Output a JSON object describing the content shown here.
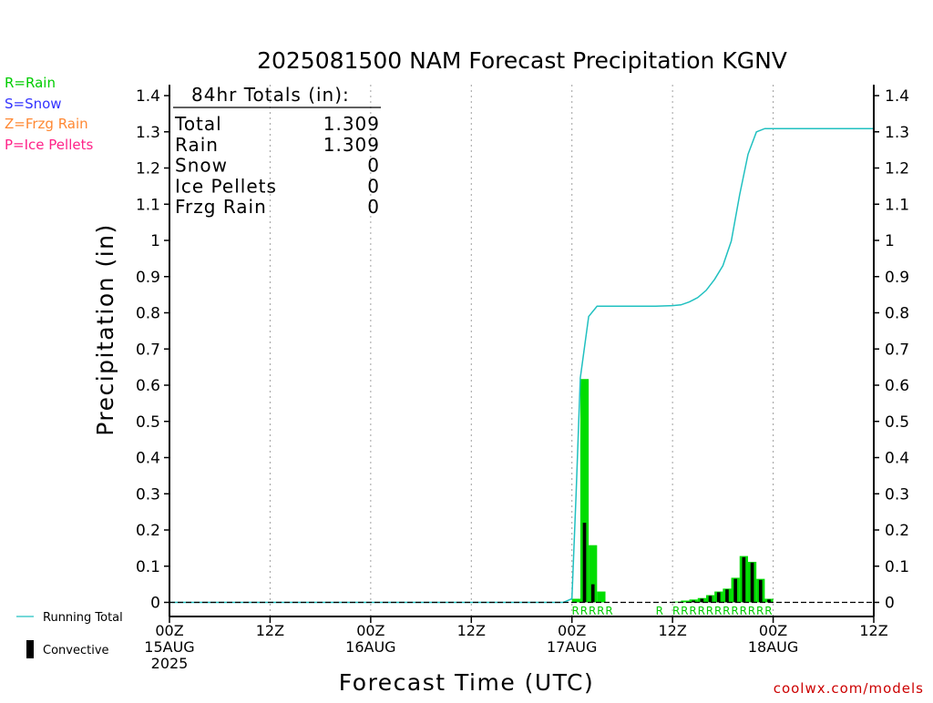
{
  "colors": {
    "axis": "#000000",
    "grid": "#a0a0a0",
    "rain_bar": "#00dd00",
    "convective_bar": "#000000",
    "running_total": "#20c0c0",
    "rain_label": "#00cc00",
    "snow_label": "#3333ff",
    "frzg_label": "#ff8833",
    "ice_label": "#ff2288",
    "footer": "#cc0000"
  },
  "legend": {
    "rain": "R=Rain",
    "snow": "S=Snow",
    "frzg": "Z=Frzg Rain",
    "ice": "P=Ice Pellets",
    "running_total": "Running Total",
    "convective": "Convective"
  },
  "totals": {
    "heading": "84hr Totals (in):",
    "rows": [
      {
        "label": "Total",
        "value": "1.309"
      },
      {
        "label": "Rain",
        "value": "1.309"
      },
      {
        "label": "Snow",
        "value": "0"
      },
      {
        "label": "Ice Pellets",
        "value": "0"
      },
      {
        "label": "Frzg Rain",
        "value": "0"
      }
    ]
  },
  "footer": "coolwx.com/models",
  "chart_data": {
    "type": "bar",
    "title": "2025081500 NAM Forecast Precipitation KGNV",
    "ylabel": "Precipitation (in)",
    "xlabel": "Forecast Time (UTC)",
    "x_unit": "hours since 00Z 15AUG 2025",
    "xlim": [
      0,
      84
    ],
    "ylim": [
      -0.04,
      1.44
    ],
    "yticks": [
      0,
      0.1,
      0.2,
      0.3,
      0.4,
      0.5,
      0.6,
      0.7,
      0.8,
      0.9,
      1,
      1.1,
      1.2,
      1.3,
      1.4
    ],
    "xticks": [
      {
        "x": 0,
        "lines": [
          "00Z",
          "15AUG",
          "2025"
        ]
      },
      {
        "x": 12,
        "lines": [
          "12Z"
        ]
      },
      {
        "x": 24,
        "lines": [
          "00Z",
          "16AUG"
        ]
      },
      {
        "x": 36,
        "lines": [
          "12Z"
        ]
      },
      {
        "x": 48,
        "lines": [
          "00Z",
          "17AUG"
        ]
      },
      {
        "x": 60,
        "lines": [
          "12Z"
        ]
      },
      {
        "x": 72,
        "lines": [
          "00Z",
          "18AUG"
        ]
      },
      {
        "x": 84,
        "lines": [
          "12Z"
        ]
      }
    ],
    "grid": "vertical dotted at each tick",
    "series": [
      {
        "name": "Rain",
        "kind": "bar",
        "bar_width_h": 1,
        "points": [
          {
            "x": 48,
            "y": 0.01
          },
          {
            "x": 49,
            "y": 0.617
          },
          {
            "x": 50,
            "y": 0.158
          },
          {
            "x": 51,
            "y": 0.03
          },
          {
            "x": 60,
            "y": 0.002
          },
          {
            "x": 61,
            "y": 0.005
          },
          {
            "x": 62,
            "y": 0.008
          },
          {
            "x": 63,
            "y": 0.012
          },
          {
            "x": 64,
            "y": 0.02
          },
          {
            "x": 65,
            "y": 0.03
          },
          {
            "x": 66,
            "y": 0.038
          },
          {
            "x": 67,
            "y": 0.068
          },
          {
            "x": 68,
            "y": 0.128
          },
          {
            "x": 69,
            "y": 0.112
          },
          {
            "x": 70,
            "y": 0.065
          },
          {
            "x": 71,
            "y": 0.01
          }
        ]
      },
      {
        "name": "Convective",
        "kind": "bar",
        "bar_width_h": 0.4,
        "points": [
          {
            "x": 49,
            "y": 0.22
          },
          {
            "x": 50,
            "y": 0.05
          },
          {
            "x": 62,
            "y": 0.005
          },
          {
            "x": 63,
            "y": 0.01
          },
          {
            "x": 64,
            "y": 0.018
          },
          {
            "x": 65,
            "y": 0.028
          },
          {
            "x": 66,
            "y": 0.036
          },
          {
            "x": 67,
            "y": 0.065
          },
          {
            "x": 68,
            "y": 0.125
          },
          {
            "x": 69,
            "y": 0.11
          },
          {
            "x": 70,
            "y": 0.062
          },
          {
            "x": 71,
            "y": 0.008
          }
        ]
      },
      {
        "name": "Running Total",
        "kind": "line",
        "points": [
          {
            "x": 0,
            "y": 0
          },
          {
            "x": 47,
            "y": 0
          },
          {
            "x": 48,
            "y": 0.01
          },
          {
            "x": 48.5,
            "y": 0.3
          },
          {
            "x": 49,
            "y": 0.62
          },
          {
            "x": 50,
            "y": 0.79
          },
          {
            "x": 51,
            "y": 0.818
          },
          {
            "x": 58,
            "y": 0.818
          },
          {
            "x": 60,
            "y": 0.82
          },
          {
            "x": 61,
            "y": 0.822
          },
          {
            "x": 62,
            "y": 0.83
          },
          {
            "x": 63,
            "y": 0.842
          },
          {
            "x": 64,
            "y": 0.862
          },
          {
            "x": 65,
            "y": 0.892
          },
          {
            "x": 66,
            "y": 0.93
          },
          {
            "x": 67,
            "y": 0.998
          },
          {
            "x": 68,
            "y": 1.126
          },
          {
            "x": 69,
            "y": 1.238
          },
          {
            "x": 70,
            "y": 1.3
          },
          {
            "x": 71,
            "y": 1.309
          },
          {
            "x": 84,
            "y": 1.309
          }
        ]
      }
    ],
    "ptype_markers": [
      {
        "x": 48,
        "code": "R"
      },
      {
        "x": 49,
        "code": "R"
      },
      {
        "x": 50,
        "code": "R"
      },
      {
        "x": 51,
        "code": "R"
      },
      {
        "x": 52,
        "code": "R"
      },
      {
        "x": 58,
        "code": "R"
      },
      {
        "x": 60,
        "code": "R"
      },
      {
        "x": 61,
        "code": "R"
      },
      {
        "x": 62,
        "code": "R"
      },
      {
        "x": 63,
        "code": "R"
      },
      {
        "x": 64,
        "code": "R"
      },
      {
        "x": 65,
        "code": "R"
      },
      {
        "x": 66,
        "code": "R"
      },
      {
        "x": 67,
        "code": "R"
      },
      {
        "x": 68,
        "code": "R"
      },
      {
        "x": 69,
        "code": "R"
      },
      {
        "x": 70,
        "code": "R"
      },
      {
        "x": 71,
        "code": "R"
      }
    ]
  }
}
